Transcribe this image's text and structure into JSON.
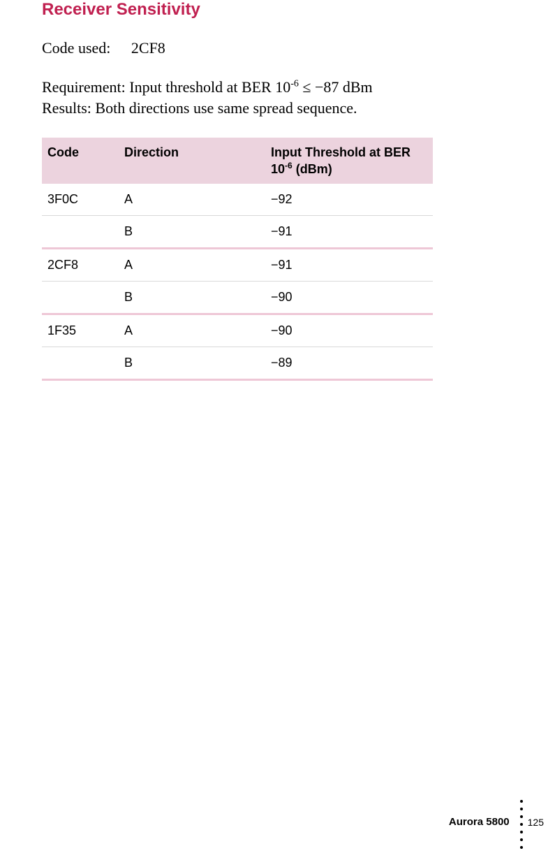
{
  "section_title": "Receiver Sensitivity",
  "code_used": {
    "label": "Code used:",
    "value": "2CF8"
  },
  "requirement": {
    "label": "Requirement:",
    "text_before_sup": "Input threshold at BER 10",
    "sup": "-6",
    "text_after_sup": " ≤ −87 dBm"
  },
  "results": {
    "label": "Results:",
    "text": "Both directions use same spread sequence."
  },
  "table": {
    "headers": {
      "code": "Code",
      "direction": "Direction",
      "threshold_before_sup": "Input Threshold at BER 10",
      "threshold_sup": "-6",
      "threshold_after_sup": " (dBm)"
    },
    "groups": [
      {
        "code": "3F0C",
        "rows": [
          {
            "direction": "A",
            "value": "−92"
          },
          {
            "direction": "B",
            "value": "−91"
          }
        ]
      },
      {
        "code": "2CF8",
        "rows": [
          {
            "direction": "A",
            "value": "−91"
          },
          {
            "direction": "B",
            "value": "−90"
          }
        ]
      },
      {
        "code": "1F35",
        "rows": [
          {
            "direction": "A",
            "value": "−90"
          },
          {
            "direction": "B",
            "value": "−89"
          }
        ]
      }
    ]
  },
  "footer": {
    "product": "Aurora 5800",
    "page": "125"
  },
  "colors": {
    "title": "#c02050",
    "header_bg": "#ecd3de",
    "group_divider": "#eec7d6",
    "row_divider": "#d9d9d9",
    "background": "#ffffff"
  }
}
